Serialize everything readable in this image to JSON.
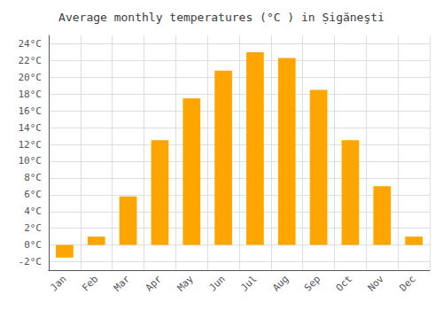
{
  "chart_data": {
    "type": "bar",
    "title": "Average monthly temperatures (°C ) in Ṣigăneşti",
    "categories": [
      "Jan",
      "Feb",
      "Mar",
      "Apr",
      "May",
      "Jun",
      "Jul",
      "Aug",
      "Sep",
      "Oct",
      "Nov",
      "Dec"
    ],
    "values": [
      -1.5,
      1.0,
      5.8,
      12.5,
      17.5,
      20.8,
      23.0,
      22.3,
      18.5,
      12.5,
      7.0,
      1.0
    ],
    "color": "#FFA500",
    "ylim": [
      -3,
      25
    ],
    "yticks": [
      {
        "value": -2,
        "label": "-2°C"
      },
      {
        "value": 0,
        "label": "0°C"
      },
      {
        "value": 2,
        "label": "2°C"
      },
      {
        "value": 4,
        "label": "4°C"
      },
      {
        "value": 6,
        "label": "6°C"
      },
      {
        "value": 8,
        "label": "8°C"
      },
      {
        "value": 10,
        "label": "10°C"
      },
      {
        "value": 12,
        "label": "12°C"
      },
      {
        "value": 14,
        "label": "14°C"
      },
      {
        "value": 16,
        "label": "16°C"
      },
      {
        "value": 18,
        "label": "18°C"
      },
      {
        "value": 20,
        "label": "20°C"
      },
      {
        "value": 22,
        "label": "22°C"
      },
      {
        "value": 24,
        "label": "24°C"
      }
    ],
    "grid": true
  }
}
